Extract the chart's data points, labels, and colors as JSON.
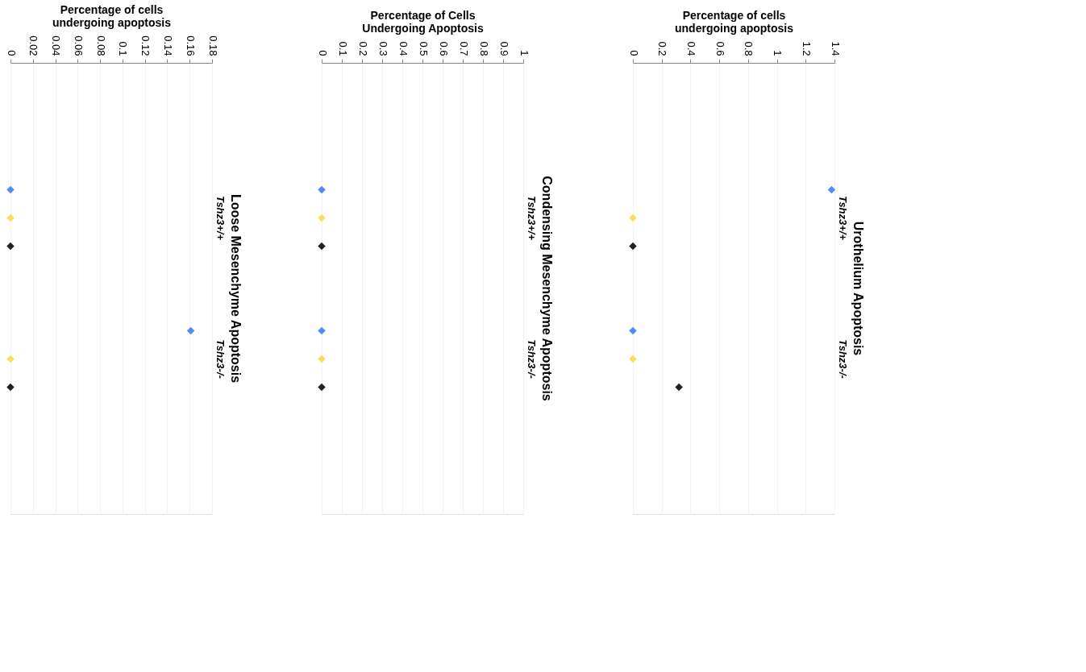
{
  "chart_data": [
    {
      "type": "scatter",
      "orientation": "horizontal",
      "title": "Loose Mesenchyme Apoptosis",
      "xlabel": "Percentage of cells\nundergoing apoptosis",
      "categories": [
        "Tshz3+/+",
        "Tshz3-/-"
      ],
      "marker": "diamond",
      "grid": true,
      "legend": false,
      "xlim": [
        0,
        0.18
      ],
      "xticks": [
        0,
        0.02,
        0.04,
        0.06,
        0.08,
        0.1,
        0.12,
        0.14,
        0.16,
        0.18
      ],
      "series": [
        {
          "color": "#4f8ef0",
          "values": [
            0,
            0.161
          ]
        },
        {
          "color": "#f5e05a",
          "values": [
            0,
            0
          ]
        },
        {
          "color": "#222222",
          "values": [
            0,
            0
          ]
        }
      ]
    },
    {
      "type": "scatter",
      "orientation": "horizontal",
      "title": "Condensing Mesenchyme Apoptosis",
      "xlabel": "Percentage of Cells\nUndergoing Apoptosis",
      "categories": [
        "Tshz3+/+",
        "Tshz3-/-"
      ],
      "marker": "diamond",
      "grid": true,
      "legend": false,
      "xlim": [
        0,
        1
      ],
      "xticks": [
        0,
        0.1,
        0.2,
        0.3,
        0.4,
        0.5,
        0.6,
        0.7,
        0.8,
        0.9,
        1
      ],
      "series": [
        {
          "color": "#4f8ef0",
          "values": [
            0,
            0
          ]
        },
        {
          "color": "#f5e05a",
          "values": [
            0,
            0
          ]
        },
        {
          "color": "#222222",
          "values": [
            0,
            0
          ]
        }
      ]
    },
    {
      "type": "scatter",
      "orientation": "horizontal",
      "title": "Urothelium Apoptosis",
      "xlabel": "Percentage of cells\nundergoing apoptosis",
      "categories": [
        "Tshz3+/+",
        "Tshz3-/-"
      ],
      "marker": "diamond",
      "grid": true,
      "legend": false,
      "xlim": [
        0,
        1.4
      ],
      "xticks": [
        0,
        0.2,
        0.4,
        0.6,
        0.8,
        1,
        1.2,
        1.4
      ],
      "series": [
        {
          "color": "#4f8ef0",
          "values": [
            1.38,
            0
          ]
        },
        {
          "color": "#f5e05a",
          "values": [
            0,
            0
          ]
        },
        {
          "color": "#222222",
          "values": [
            0,
            0.32
          ]
        }
      ]
    }
  ]
}
